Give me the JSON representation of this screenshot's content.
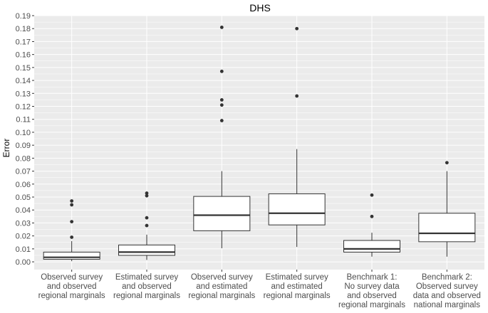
{
  "chart_data": {
    "type": "boxplot",
    "title": "DHS",
    "xlabel": "",
    "ylabel": "Error",
    "ylim": [
      -0.006,
      0.19
    ],
    "yticks": [
      0.0,
      0.01,
      0.02,
      0.03,
      0.04,
      0.05,
      0.06,
      0.07,
      0.08,
      0.09,
      0.1,
      0.11,
      0.12,
      0.13,
      0.14,
      0.15,
      0.16,
      0.17,
      0.18,
      0.19
    ],
    "ytick_labels": [
      "0.00",
      "0.01",
      "0.02",
      "0.03",
      "0.04",
      "0.05",
      "0.06",
      "0.07",
      "0.08",
      "0.09",
      "0.10",
      "0.11",
      "0.12",
      "0.13",
      "0.14",
      "0.15",
      "0.16",
      "0.17",
      "0.18",
      "0.19"
    ],
    "grid": true,
    "background": "#ebebeb",
    "grid_color": "#ffffff",
    "box_fill": "#ffffff",
    "line_color": "#333333",
    "categories": [
      [
        "Observed survey",
        "and observed",
        "regional marginals"
      ],
      [
        "Estimated survey",
        "and observed",
        "regional marginals"
      ],
      [
        "Observed survey",
        "and estimated",
        "regional marginals"
      ],
      [
        "Estimated survey",
        "and estimated",
        "regional marginals"
      ],
      [
        "Benchmark 1:",
        "No survey data",
        "and observed",
        "regional marginals"
      ],
      [
        "Benchmark 2:",
        "Observed survey",
        "data and observed",
        "national marginals"
      ]
    ],
    "boxes": [
      {
        "whisker_low": 0.0005,
        "q1": 0.002,
        "median": 0.0035,
        "q3": 0.0075,
        "whisker_high": 0.016,
        "outliers": [
          0.019,
          0.031,
          0.044,
          0.047
        ]
      },
      {
        "whisker_low": 0.0015,
        "q1": 0.005,
        "median": 0.0075,
        "q3": 0.013,
        "whisker_high": 0.021,
        "outliers": [
          0.028,
          0.034,
          0.051,
          0.053
        ]
      },
      {
        "whisker_low": 0.0105,
        "q1": 0.024,
        "median": 0.036,
        "q3": 0.0505,
        "whisker_high": 0.07,
        "outliers": [
          0.109,
          0.121,
          0.125,
          0.147,
          0.181
        ]
      },
      {
        "whisker_low": 0.0115,
        "q1": 0.0285,
        "median": 0.0375,
        "q3": 0.0525,
        "whisker_high": 0.087,
        "outliers": [
          0.128,
          0.18
        ]
      },
      {
        "whisker_low": 0.004,
        "q1": 0.0075,
        "median": 0.01,
        "q3": 0.0165,
        "whisker_high": 0.0225,
        "outliers": [
          0.035,
          0.0515
        ]
      },
      {
        "whisker_low": 0.004,
        "q1": 0.0155,
        "median": 0.022,
        "q3": 0.0375,
        "whisker_high": 0.07,
        "outliers": [
          0.0765
        ]
      }
    ]
  }
}
